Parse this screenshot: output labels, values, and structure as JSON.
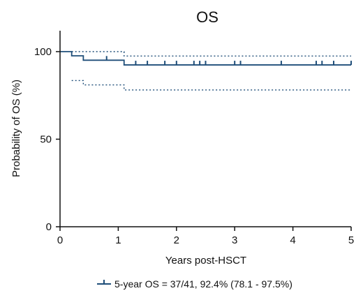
{
  "chart_data": {
    "type": "line",
    "title": "OS",
    "xlabel": "Years post-HSCT",
    "ylabel": "Probability of OS (%)",
    "xlim": [
      0,
      5
    ],
    "ylim": [
      0,
      100
    ],
    "xticks": [
      "0",
      "1",
      "2",
      "3",
      "4",
      "5"
    ],
    "yticks": [
      "0",
      "50",
      "100"
    ],
    "x_tick_values": [
      0,
      1,
      2,
      3,
      4,
      5
    ],
    "y_tick_values": [
      0,
      50,
      100
    ],
    "grid": false,
    "legend_position": "bottom-center",
    "colors": {
      "survival": "#1f4e79",
      "ci": "#1f4e79",
      "axis": "#111111"
    },
    "series": [
      {
        "name": "5-year OS = 37/41, 92.4% (78.1 - 97.5%)",
        "style": "step",
        "x": [
          0,
          0.2,
          0.4,
          1.1,
          5.0
        ],
        "y": [
          100,
          97.6,
          95.1,
          92.4,
          92.4
        ],
        "censor_x": [
          0.8,
          1.3,
          1.5,
          1.8,
          2.0,
          2.3,
          2.4,
          2.5,
          3.0,
          3.1,
          3.8,
          4.4,
          4.5,
          4.7,
          5.0
        ]
      },
      {
        "role": "upper-ci",
        "style": "step-dotted",
        "x": [
          0.2,
          1.1,
          5.0
        ],
        "y": [
          100,
          97.5,
          97.5
        ]
      },
      {
        "role": "lower-ci",
        "style": "step-dotted",
        "x": [
          0.2,
          0.4,
          1.1,
          5.0
        ],
        "y": [
          83.5,
          81.0,
          78.1,
          78.1
        ]
      }
    ]
  }
}
